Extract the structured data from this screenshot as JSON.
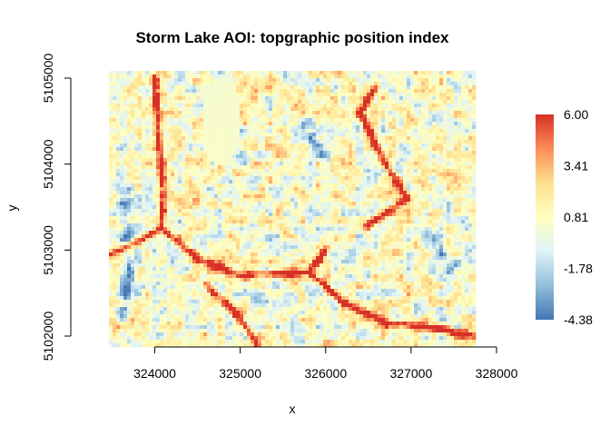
{
  "chart_data": {
    "type": "heatmap",
    "title": "Storm Lake AOI: topgraphic position index",
    "xlabel": "x",
    "ylabel": "y",
    "xlim": [
      323500,
      327750
    ],
    "ylim": [
      5102000,
      5105100
    ],
    "x_ticks": [
      324000,
      325000,
      326000,
      327000,
      328000
    ],
    "y_ticks": [
      5102000,
      5103000,
      5104000,
      5105000
    ],
    "x_tick_labels": [
      "324000",
      "325000",
      "326000",
      "327000",
      "328000"
    ],
    "y_tick_labels": [
      "5102000",
      "5103000",
      "5104000",
      "5105000"
    ],
    "legend": {
      "position": "right",
      "labels": [
        "6.00",
        "3.41",
        "0.81",
        "-1.78",
        "-4.38"
      ],
      "values": [
        6.0,
        3.41,
        0.81,
        -1.78,
        -4.38
      ],
      "colors": [
        "#d73027",
        "#fc8d59",
        "#fee090",
        "#ffffbf",
        "#e0f3f8",
        "#91bfdb",
        "#4575b4"
      ]
    },
    "features": {
      "lake": {
        "x": [
          324550,
          325000
        ],
        "y": [
          5104000,
          5105000
        ],
        "value": 0.3
      },
      "high_tpi_ridges": [
        [
          [
            324000,
            5105000
          ],
          [
            324050,
            5104200
          ],
          [
            324100,
            5103700
          ],
          [
            324080,
            5103250
          ],
          [
            323500,
            5102950
          ]
        ],
        [
          [
            324080,
            5103250
          ],
          [
            324500,
            5102900
          ],
          [
            325000,
            5102700
          ],
          [
            325800,
            5102750
          ],
          [
            326000,
            5103000
          ]
        ],
        [
          [
            325800,
            5102750
          ],
          [
            326200,
            5102400
          ],
          [
            326700,
            5102150
          ],
          [
            327200,
            5102100
          ],
          [
            327750,
            5102000
          ]
        ],
        [
          [
            324600,
            5102600
          ],
          [
            325000,
            5102200
          ],
          [
            325200,
            5101900
          ]
        ],
        [
          [
            326600,
            5104900
          ],
          [
            326400,
            5104600
          ],
          [
            326700,
            5104000
          ],
          [
            326950,
            5103600
          ],
          [
            326500,
            5103300
          ]
        ]
      ],
      "valleys": [
        [
          [
            323600,
            5103800
          ],
          [
            323700,
            5103000
          ],
          [
            323650,
            5102300
          ]
        ],
        [
          [
            325800,
            5104400
          ],
          [
            326000,
            5104100
          ]
        ],
        [
          [
            327200,
            5103200
          ],
          [
            327500,
            5102800
          ]
        ]
      ]
    }
  }
}
